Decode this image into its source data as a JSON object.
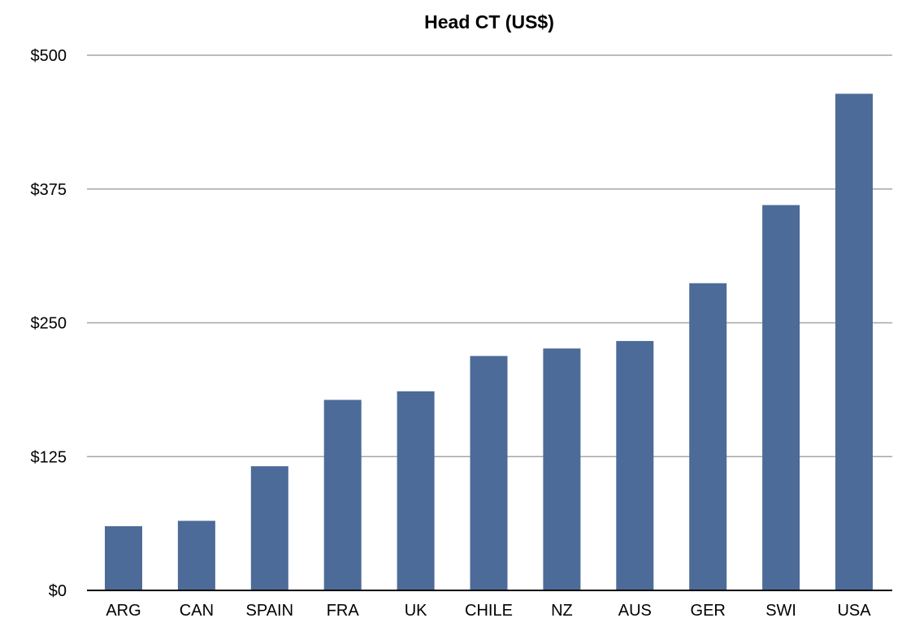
{
  "chart_data": {
    "type": "bar",
    "title": "Head CT (US$)",
    "xlabel": "",
    "ylabel": "",
    "categories": [
      "ARG",
      "CAN",
      "SPAIN",
      "FRA",
      "UK",
      "CHILE",
      "NZ",
      "AUS",
      "GER",
      "SWI",
      "USA"
    ],
    "values": [
      60,
      65,
      116,
      178,
      186,
      219,
      226,
      233,
      287,
      360,
      464
    ],
    "ylim": [
      0,
      500
    ],
    "yticks": [
      0,
      125,
      250,
      375,
      500
    ],
    "ytick_labels": [
      "$0",
      "$125",
      "$250",
      "$375",
      "$500"
    ],
    "grid": true,
    "legend": "none",
    "bar_color": "#4d6b98"
  }
}
